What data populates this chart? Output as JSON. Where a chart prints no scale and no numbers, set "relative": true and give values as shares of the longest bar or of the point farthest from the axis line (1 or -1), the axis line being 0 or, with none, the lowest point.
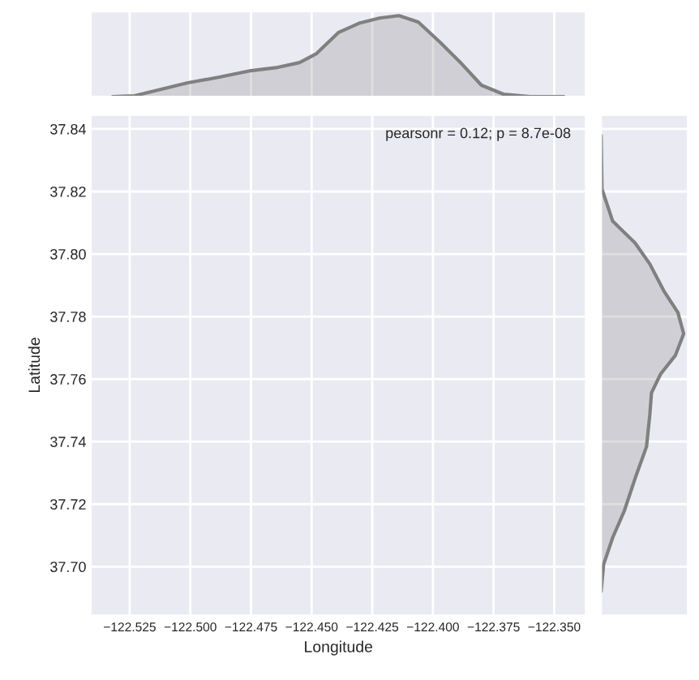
{
  "chart_data": [
    {
      "type": "area",
      "relative": true,
      "xlim": [
        -122.541,
        -122.337
      ],
      "xticks": [
        -122.525,
        -122.5,
        -122.475,
        -122.45,
        -122.425,
        -122.4,
        -122.375,
        -122.35
      ],
      "tick_labels": false,
      "grid": true,
      "x": [
        -122.532,
        -122.523,
        -122.512,
        -122.501,
        -122.488,
        -122.475,
        -122.464,
        -122.455,
        -122.448,
        -122.439,
        -122.43,
        -122.422,
        -122.414,
        -122.406,
        -122.397,
        -122.388,
        -122.38,
        -122.371,
        -122.36,
        -122.346
      ],
      "series": [
        {
          "color": "#808080",
          "values": [
            0,
            0.01,
            0.09,
            0.17,
            0.24,
            0.32,
            0.36,
            0.42,
            0.53,
            0.79,
            0.91,
            0.97,
            1,
            0.92,
            0.67,
            0.4,
            0.14,
            0.03,
            0,
            0
          ]
        }
      ]
    },
    {
      "type": "scatter",
      "xlabel": "Longitude",
      "ylabel": "Latitude",
      "xlim": [
        -122.541,
        -122.337
      ],
      "ylim": [
        37.6844,
        37.8445
      ],
      "xticks": [
        {
          "value": -122.525,
          "label": "−122.525"
        },
        {
          "value": -122.5,
          "label": "−122.500"
        },
        {
          "value": -122.475,
          "label": "−122.475"
        },
        {
          "value": -122.45,
          "label": "−122.450"
        },
        {
          "value": -122.425,
          "label": "−122.425"
        },
        {
          "value": -122.4,
          "label": "−122.400"
        },
        {
          "value": -122.375,
          "label": "−122.375"
        },
        {
          "value": -122.35,
          "label": "−122.350"
        }
      ],
      "yticks": [
        {
          "value": 37.7,
          "label": "37.70"
        },
        {
          "value": 37.72,
          "label": "37.72"
        },
        {
          "value": 37.74,
          "label": "37.74"
        },
        {
          "value": 37.76,
          "label": "37.76"
        },
        {
          "value": 37.78,
          "label": "37.78"
        },
        {
          "value": 37.8,
          "label": "37.80"
        },
        {
          "value": 37.82,
          "label": "37.82"
        },
        {
          "value": 37.84,
          "label": "37.84"
        }
      ],
      "grid": true,
      "annotations": [
        "pearsonr = 0.12; p = 8.7e-08"
      ]
    },
    {
      "type": "area",
      "relative": true,
      "orientation": "horizontal",
      "ylim": [
        37.6844,
        37.8445
      ],
      "yticks": [
        37.7,
        37.72,
        37.74,
        37.76,
        37.78,
        37.8,
        37.82,
        37.84
      ],
      "tick_labels": false,
      "grid": true,
      "x": [
        37.8379,
        37.8208,
        37.8105,
        37.8036,
        37.7968,
        37.7882,
        37.7813,
        37.7745,
        37.7676,
        37.7616,
        37.7556,
        37.7487,
        37.7384,
        37.7281,
        37.7178,
        37.7093,
        37.7007,
        37.6921
      ],
      "series": [
        {
          "color": "#808080",
          "values": [
            0,
            0.01,
            0.14,
            0.41,
            0.59,
            0.76,
            0.93,
            1,
            0.9,
            0.72,
            0.61,
            0.59,
            0.55,
            0.41,
            0.28,
            0.14,
            0.03,
            0
          ]
        }
      ]
    }
  ]
}
